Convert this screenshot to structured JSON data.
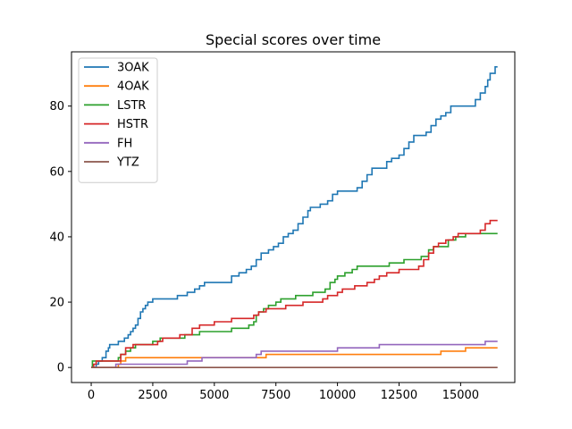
{
  "chart_data": {
    "type": "line",
    "title": "Special scores over time",
    "xlabel": "",
    "ylabel": "",
    "xlim": [
      -800,
      17200
    ],
    "ylim": [
      -4.6,
      96.6
    ],
    "x_ticks": [
      0,
      2500,
      5000,
      7500,
      10000,
      12500,
      15000
    ],
    "x_tick_labels": [
      "0",
      "2500",
      "5000",
      "7500",
      "10000",
      "12500",
      "15000"
    ],
    "y_ticks": [
      0,
      20,
      40,
      60,
      80
    ],
    "y_tick_labels": [
      "0",
      "20",
      "40",
      "60",
      "80"
    ],
    "grid": false,
    "legend_position": "upper-left",
    "series": [
      {
        "name": "3OAK",
        "color": "#1f77b4",
        "points": [
          [
            0,
            0
          ],
          [
            200,
            1
          ],
          [
            300,
            2
          ],
          [
            450,
            3
          ],
          [
            600,
            5
          ],
          [
            700,
            6
          ],
          [
            750,
            7
          ],
          [
            1100,
            8
          ],
          [
            1350,
            9
          ],
          [
            1500,
            10
          ],
          [
            1600,
            11
          ],
          [
            1700,
            12
          ],
          [
            1800,
            13
          ],
          [
            1900,
            15
          ],
          [
            2000,
            17
          ],
          [
            2100,
            18
          ],
          [
            2200,
            19
          ],
          [
            2300,
            20
          ],
          [
            2500,
            21
          ],
          [
            3000,
            21
          ],
          [
            3500,
            22
          ],
          [
            3900,
            23
          ],
          [
            4200,
            24
          ],
          [
            4400,
            25
          ],
          [
            4600,
            26
          ],
          [
            5000,
            26
          ],
          [
            5700,
            28
          ],
          [
            6000,
            29
          ],
          [
            6300,
            30
          ],
          [
            6500,
            31
          ],
          [
            6700,
            33
          ],
          [
            6900,
            35
          ],
          [
            7200,
            36
          ],
          [
            7400,
            37
          ],
          [
            7600,
            38
          ],
          [
            7800,
            40
          ],
          [
            8000,
            41
          ],
          [
            8200,
            42
          ],
          [
            8400,
            44
          ],
          [
            8600,
            46
          ],
          [
            8800,
            48
          ],
          [
            8900,
            49
          ],
          [
            9300,
            50
          ],
          [
            9600,
            51
          ],
          [
            9800,
            53
          ],
          [
            10000,
            54
          ],
          [
            10800,
            55
          ],
          [
            11000,
            57
          ],
          [
            11200,
            59
          ],
          [
            11400,
            61
          ],
          [
            12000,
            63
          ],
          [
            12200,
            64
          ],
          [
            12500,
            65
          ],
          [
            12700,
            67
          ],
          [
            12900,
            69
          ],
          [
            13100,
            71
          ],
          [
            13600,
            72
          ],
          [
            13800,
            74
          ],
          [
            14000,
            76
          ],
          [
            14200,
            77
          ],
          [
            14400,
            78
          ],
          [
            14600,
            80
          ],
          [
            15000,
            80
          ],
          [
            15400,
            80
          ],
          [
            15600,
            82
          ],
          [
            15800,
            84
          ],
          [
            16000,
            86
          ],
          [
            16100,
            88
          ],
          [
            16200,
            90
          ],
          [
            16400,
            92
          ],
          [
            16500,
            92
          ]
        ]
      },
      {
        "name": "4OAK",
        "color": "#ff7f0e",
        "points": [
          [
            0,
            0
          ],
          [
            1100,
            1
          ],
          [
            1200,
            2
          ],
          [
            1400,
            3
          ],
          [
            6800,
            3
          ],
          [
            7100,
            4
          ],
          [
            14000,
            4
          ],
          [
            14200,
            5
          ],
          [
            15000,
            5
          ],
          [
            15200,
            6
          ],
          [
            16500,
            6
          ]
        ]
      },
      {
        "name": "LSTR",
        "color": "#2ca02c",
        "points": [
          [
            0,
            0
          ],
          [
            50,
            2
          ],
          [
            1100,
            3
          ],
          [
            1200,
            4
          ],
          [
            1400,
            5
          ],
          [
            1600,
            6
          ],
          [
            1800,
            7
          ],
          [
            2500,
            8
          ],
          [
            2800,
            9
          ],
          [
            3800,
            10
          ],
          [
            4400,
            11
          ],
          [
            5700,
            12
          ],
          [
            6400,
            13
          ],
          [
            6600,
            14
          ],
          [
            6700,
            16
          ],
          [
            6800,
            17
          ],
          [
            7000,
            18
          ],
          [
            7200,
            19
          ],
          [
            7500,
            20
          ],
          [
            7700,
            21
          ],
          [
            8300,
            22
          ],
          [
            9000,
            23
          ],
          [
            9500,
            24
          ],
          [
            9700,
            26
          ],
          [
            9900,
            27
          ],
          [
            10000,
            28
          ],
          [
            10300,
            29
          ],
          [
            10600,
            30
          ],
          [
            10800,
            31
          ],
          [
            12100,
            32
          ],
          [
            12700,
            33
          ],
          [
            13400,
            34
          ],
          [
            13700,
            36
          ],
          [
            13900,
            37
          ],
          [
            14500,
            39
          ],
          [
            14800,
            40
          ],
          [
            15200,
            41
          ],
          [
            16500,
            41
          ]
        ]
      },
      {
        "name": "HSTR",
        "color": "#d62728",
        "points": [
          [
            0,
            0
          ],
          [
            100,
            1
          ],
          [
            200,
            2
          ],
          [
            1200,
            4
          ],
          [
            1400,
            6
          ],
          [
            1700,
            7
          ],
          [
            2700,
            8
          ],
          [
            2900,
            9
          ],
          [
            3600,
            10
          ],
          [
            4100,
            12
          ],
          [
            4400,
            13
          ],
          [
            5000,
            14
          ],
          [
            5700,
            15
          ],
          [
            6600,
            16
          ],
          [
            6800,
            17
          ],
          [
            7100,
            18
          ],
          [
            7900,
            19
          ],
          [
            8600,
            20
          ],
          [
            9400,
            21
          ],
          [
            9600,
            22
          ],
          [
            10000,
            23
          ],
          [
            10200,
            24
          ],
          [
            10700,
            25
          ],
          [
            11200,
            26
          ],
          [
            11500,
            27
          ],
          [
            11700,
            28
          ],
          [
            12000,
            29
          ],
          [
            12500,
            30
          ],
          [
            13000,
            30
          ],
          [
            13300,
            31
          ],
          [
            13500,
            33
          ],
          [
            13700,
            35
          ],
          [
            13900,
            37
          ],
          [
            14100,
            38
          ],
          [
            14400,
            39
          ],
          [
            14700,
            40
          ],
          [
            14900,
            41
          ],
          [
            15800,
            42
          ],
          [
            16000,
            44
          ],
          [
            16200,
            45
          ],
          [
            16500,
            45
          ]
        ]
      },
      {
        "name": "FH",
        "color": "#9467bd",
        "points": [
          [
            0,
            0
          ],
          [
            1000,
            1
          ],
          [
            3900,
            2
          ],
          [
            4500,
            3
          ],
          [
            6400,
            3
          ],
          [
            6700,
            4
          ],
          [
            6900,
            5
          ],
          [
            9800,
            5
          ],
          [
            10000,
            6
          ],
          [
            11700,
            7
          ],
          [
            15800,
            7
          ],
          [
            16000,
            8
          ],
          [
            16500,
            8
          ]
        ]
      },
      {
        "name": "YTZ",
        "color": "#8c564b",
        "points": [
          [
            0,
            0
          ],
          [
            16500,
            0
          ]
        ]
      }
    ]
  }
}
